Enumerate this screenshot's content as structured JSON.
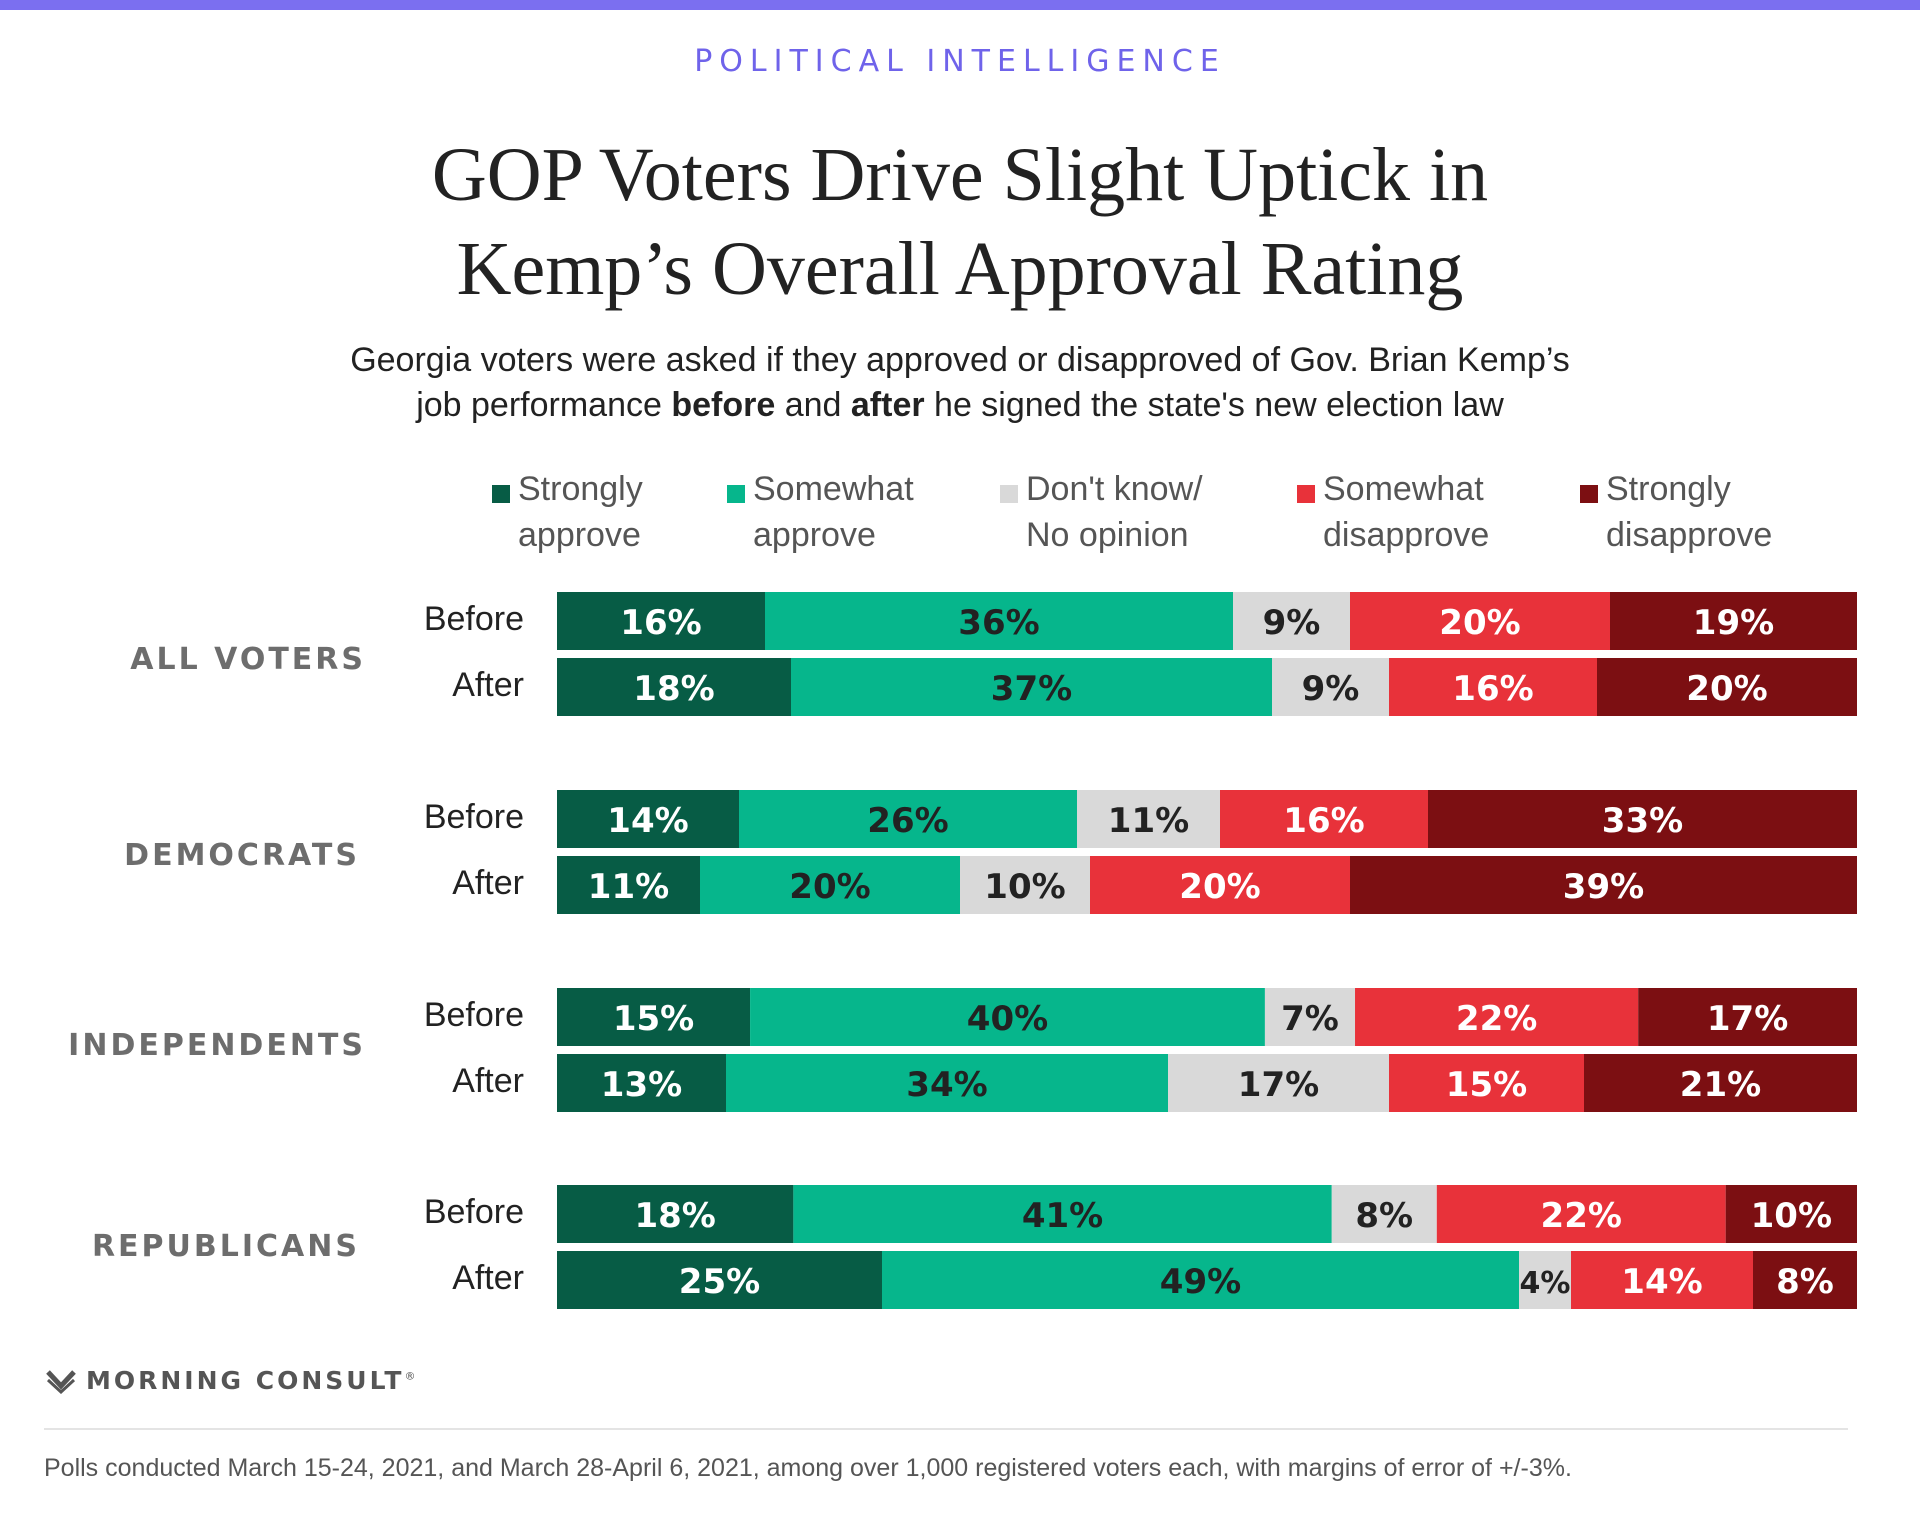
{
  "kicker": "POLITICAL INTELLIGENCE",
  "title": [
    "GOP Voters Drive Slight Uptick in",
    "Kemp’s Overall Approval Rating"
  ],
  "subtitle": {
    "line1": "Georgia voters were asked if they approved or disapproved of Gov. Brian Kemp’s",
    "line2_pre": "job performance ",
    "line2_bold1": "before",
    "line2_mid": " and ",
    "line2_bold2": "after",
    "line2_post": " he signed the state's new election law"
  },
  "colors": {
    "strongly_approve": "#075c45",
    "somewhat_approve": "#06b68c",
    "dont_know": "#d9d9d9",
    "somewhat_disapprove": "#e8323a",
    "strongly_disapprove": "#7c0f12",
    "dark_text": "#222222",
    "light_text": "#ffffff"
  },
  "chart_data": {
    "type": "bar",
    "orientation": "horizontal",
    "stacked": true,
    "unit": "%",
    "legend": [
      {
        "key": "strongly_approve",
        "lines": [
          "Strongly",
          "approve"
        ]
      },
      {
        "key": "somewhat_approve",
        "lines": [
          "Somewhat",
          "approve"
        ]
      },
      {
        "key": "dont_know",
        "lines": [
          "Don't know/",
          "No opinion"
        ]
      },
      {
        "key": "somewhat_disapprove",
        "lines": [
          "Somewhat",
          "disapprove"
        ]
      },
      {
        "key": "strongly_disapprove",
        "lines": [
          "Strongly",
          "disapprove"
        ]
      }
    ],
    "groups": [
      {
        "label": "ALL VOTERS",
        "rows": [
          {
            "label": "Before",
            "values": [
              16,
              36,
              9,
              20,
              19
            ]
          },
          {
            "label": "After",
            "values": [
              18,
              37,
              9,
              16,
              20
            ]
          }
        ]
      },
      {
        "label": "DEMOCRATS",
        "rows": [
          {
            "label": "Before",
            "values": [
              14,
              26,
              11,
              16,
              33
            ]
          },
          {
            "label": "After",
            "values": [
              11,
              20,
              10,
              20,
              39
            ]
          }
        ]
      },
      {
        "label": "INDEPENDENTS",
        "rows": [
          {
            "label": "Before",
            "values": [
              15,
              40,
              7,
              22,
              17
            ]
          },
          {
            "label": "After",
            "values": [
              13,
              34,
              17,
              15,
              21
            ]
          }
        ]
      },
      {
        "label": "REPUBLICANS",
        "rows": [
          {
            "label": "Before",
            "values": [
              18,
              41,
              8,
              22,
              10
            ]
          },
          {
            "label": "After",
            "values": [
              25,
              49,
              4,
              14,
              8
            ]
          }
        ]
      }
    ]
  },
  "logo": {
    "icon": "morning-consult-m-icon",
    "text": "MORNING CONSULT",
    "mark": "®"
  },
  "footnote": "Polls conducted March 15-24, 2021, and March 28-April 6, 2021, among over 1,000 registered voters each, with margins of error of +/-3%."
}
